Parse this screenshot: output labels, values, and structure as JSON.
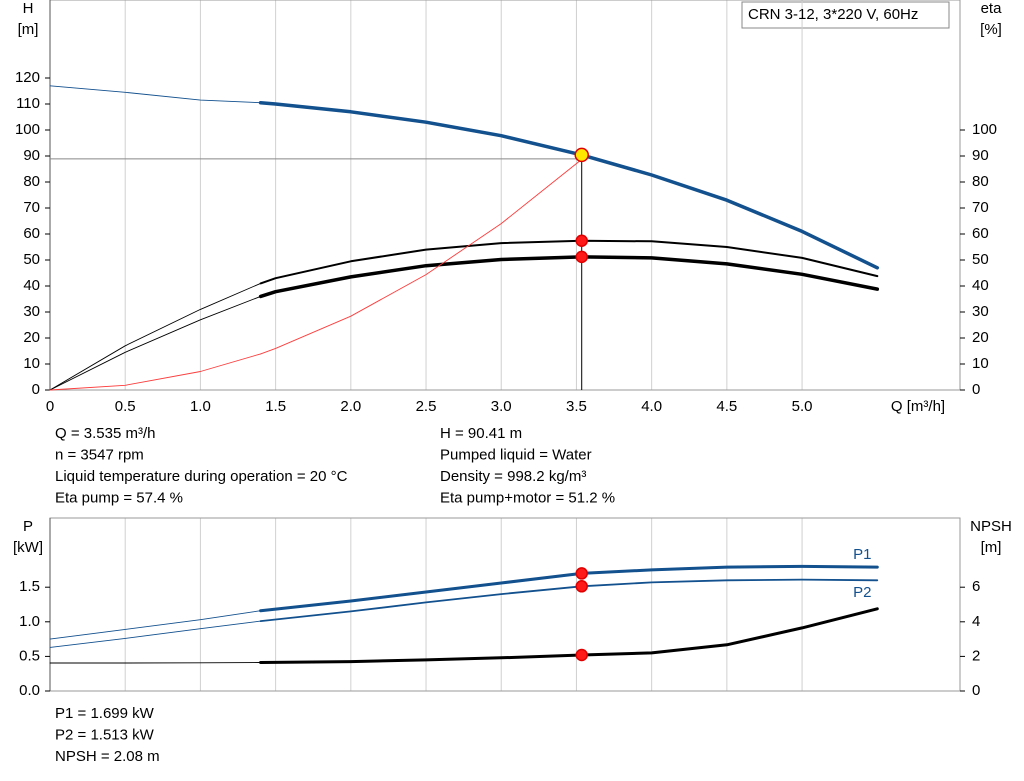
{
  "chart_data": [
    {
      "type": "line",
      "title": "CRN 3-12, 3*220 V, 60Hz",
      "ylabel": [
        "H",
        "[m]"
      ],
      "y2label": [
        "eta",
        "[%]"
      ],
      "xlabel": "Q [m³/h]",
      "x": [
        0,
        0.5,
        1.0,
        1.4,
        1.5,
        2.0,
        2.5,
        3.0,
        3.535,
        4.0,
        4.5,
        5.0,
        5.5
      ],
      "xlim": [
        0,
        6.05
      ],
      "ylim": [
        0,
        150
      ],
      "y2lim": [
        0,
        150
      ],
      "xticks": [
        0,
        0.5,
        {
          "value": 1,
          "label": "1.0"
        },
        1.5,
        {
          "value": 2,
          "label": "2.0"
        },
        2.5,
        {
          "value": 3,
          "label": "3.0"
        },
        3.5,
        {
          "value": 4,
          "label": "4.0"
        },
        4.5,
        {
          "value": 5,
          "label": "5.0"
        }
      ],
      "yticks": [
        0,
        10,
        20,
        30,
        40,
        50,
        60,
        70,
        80,
        90,
        100,
        110,
        120
      ],
      "y2ticks": [
        0,
        10,
        20,
        30,
        40,
        50,
        60,
        70,
        80,
        90,
        100
      ],
      "operating_range": [
        1.4,
        5.5
      ],
      "grid": true,
      "series": [
        {
          "color": "#12508e",
          "line_width": 3.5,
          "values": [
            117,
            114.5,
            111.5,
            110.5,
            110,
            107,
            103,
            97.8,
            90.41,
            82.7,
            73,
            61,
            47
          ]
        },
        {
          "color": "#000000",
          "line_width": 2,
          "axis": "y2",
          "values": [
            0,
            17,
            31,
            41,
            43,
            49.5,
            54,
            56.5,
            57.4,
            57.2,
            55,
            50.8,
            43.8
          ]
        },
        {
          "color": "#000000",
          "line_width": 3.5,
          "axis": "y2",
          "values": [
            0,
            14.5,
            27,
            36,
            37.8,
            43.5,
            47.8,
            50.2,
            51.2,
            50.8,
            48.5,
            44.5,
            38.8
          ]
        },
        {
          "color": "#ff3b3b",
          "line_width": 0.9,
          "values": [
            0,
            1.8,
            7.1,
            13.9,
            16,
            28.4,
            44.4,
            64,
            88.7,
            null,
            null,
            null,
            null
          ]
        }
      ],
      "duty_point": {
        "x": 3.535,
        "values": [
          90.41,
          57.4,
          51.2
        ],
        "axes": [
          "y",
          "y2",
          "y2"
        ],
        "colors": [
          "#ffe600",
          "#ff1a1a",
          "#ff1a1a"
        ]
      }
    },
    {
      "type": "line",
      "ylabel": [
        "P",
        "[kW]"
      ],
      "y2label": [
        "NPSH",
        "[m]"
      ],
      "x": [
        0,
        0.5,
        1.0,
        1.4,
        2.0,
        2.5,
        3.0,
        3.535,
        4.0,
        4.5,
        5.0,
        5.5
      ],
      "xlim": [
        0,
        6.05
      ],
      "ylim": [
        0,
        2.5
      ],
      "y2lim": [
        0,
        10
      ],
      "yticks": [
        {
          "value": 0,
          "label": "0.0"
        },
        0.5,
        {
          "value": 1,
          "label": "1.0"
        },
        1.5
      ],
      "y2ticks": [
        0,
        2,
        4,
        6
      ],
      "operating_range": [
        1.4,
        5.5
      ],
      "grid": true,
      "series": [
        {
          "name": "P1",
          "color": "#12508e",
          "line_width": 3,
          "values": [
            0.75,
            0.89,
            1.03,
            1.16,
            1.3,
            1.43,
            1.56,
            1.699,
            1.75,
            1.79,
            1.8,
            1.79
          ]
        },
        {
          "name": "P2",
          "color": "#12508e",
          "line_width": 1.8,
          "values": [
            0.63,
            0.76,
            0.9,
            1.01,
            1.15,
            1.28,
            1.4,
            1.513,
            1.57,
            1.6,
            1.61,
            1.6
          ]
        },
        {
          "color": "#000000",
          "line_width": 3,
          "axis": "y2",
          "values": [
            1.62,
            1.62,
            1.63,
            1.65,
            1.7,
            1.8,
            1.92,
            2.08,
            2.2,
            2.67,
            3.65,
            4.75
          ]
        }
      ],
      "duty_point": {
        "x": 3.535,
        "values": [
          1.699,
          1.513,
          2.08
        ],
        "axes": [
          "y",
          "y",
          "y2"
        ],
        "colors": [
          "#ff1a1a",
          "#ff1a1a",
          "#ff1a1a"
        ]
      }
    }
  ],
  "readouts": {
    "top_left": [
      "Q = 3.535 m³/h",
      "n = 3547 rpm",
      "Liquid temperature during operation = 20 °C",
      "Eta pump = 57.4 %"
    ],
    "top_right": [
      "H = 90.41 m",
      "Pumped liquid = Water",
      "Density = 998.2 kg/m³",
      "Eta pump+motor = 51.2 %"
    ],
    "bottom": [
      "P1 = 1.699 kW",
      "P2 = 1.513 kW",
      "NPSH = 2.08 m"
    ]
  }
}
